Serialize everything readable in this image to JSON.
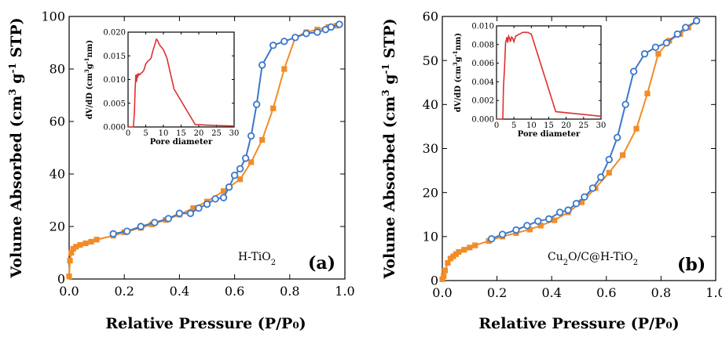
{
  "chart_data": [
    {
      "type": "line",
      "panel_label": "(a)",
      "sample_label": "H-TiO",
      "sample_label_sub": "2",
      "xlabel": "Relative Pressure (P/P₀)",
      "ylabel_parts": [
        "Volume Absorbed (cm",
        "3",
        " g",
        "-1",
        " STP)"
      ],
      "xlim": [
        0,
        1.0
      ],
      "ylim": [
        0,
        100
      ],
      "xticks": [
        "0.0",
        "0.2",
        "0.4",
        "0.6",
        "0.8",
        "1.0"
      ],
      "yticks": [
        "0",
        "20",
        "40",
        "60",
        "80",
        "100"
      ],
      "colors": {
        "adsorption": "#f28c28",
        "desorption": "#3a78c9"
      },
      "series": [
        {
          "marker": "square",
          "x": [
            0.0,
            0.003,
            0.008,
            0.015,
            0.025,
            0.04,
            0.06,
            0.08,
            0.1,
            0.16,
            0.2,
            0.26,
            0.3,
            0.35,
            0.4,
            0.45,
            0.5,
            0.56,
            0.62,
            0.66,
            0.7,
            0.74,
            0.78,
            0.82,
            0.86,
            0.9,
            0.94,
            0.97,
            0.98
          ],
          "y": [
            1,
            7,
            10,
            11.5,
            12.3,
            13,
            13.6,
            14.2,
            15,
            16.5,
            17.8,
            19.5,
            20.8,
            22.5,
            24.5,
            27,
            29.5,
            33.5,
            38,
            44.5,
            53,
            65,
            80,
            92,
            94,
            95,
            96,
            96.5,
            97
          ]
        },
        {
          "marker": "circle",
          "x": [
            0.98,
            0.95,
            0.93,
            0.9,
            0.86,
            0.82,
            0.78,
            0.74,
            0.7,
            0.68,
            0.66,
            0.64,
            0.62,
            0.6,
            0.58,
            0.56,
            0.53,
            0.5,
            0.47,
            0.44,
            0.4,
            0.36,
            0.31,
            0.26,
            0.21,
            0.16
          ],
          "y": [
            97,
            96,
            95,
            94,
            93.5,
            92,
            90.5,
            89,
            81.5,
            66.5,
            54.5,
            46,
            42,
            39.5,
            35,
            31,
            30.5,
            28.5,
            27,
            25,
            25,
            23,
            21.5,
            20,
            18.2,
            17.2
          ]
        }
      ],
      "inset": {
        "xlabel": "Pore diameter",
        "ylabel_parts": [
          "dV/dD (cm",
          "3",
          "g",
          "-1",
          "nm)"
        ],
        "xlim": [
          0,
          30
        ],
        "ylim": [
          0,
          0.02
        ],
        "xticks": [
          "0",
          "5",
          "10",
          "15",
          "20",
          "25",
          "30"
        ],
        "yticks": [
          "0.000",
          "0.005",
          "0.010",
          "0.015",
          "0.020"
        ],
        "color": "#e03030",
        "x": [
          0,
          1.5,
          1.8,
          2.0,
          2.2,
          2.4,
          2.6,
          2.8,
          3.0,
          3.3,
          3.6,
          4.0,
          4.5,
          5,
          5.5,
          6,
          6.5,
          7,
          7.5,
          8,
          8.3,
          8.6,
          9,
          10,
          11,
          13,
          19,
          25,
          30
        ],
        "y": [
          0,
          0,
          0.003,
          0.008,
          0.011,
          0.0095,
          0.0112,
          0.0107,
          0.0112,
          0.011,
          0.0113,
          0.0115,
          0.012,
          0.0133,
          0.0138,
          0.0141,
          0.0145,
          0.016,
          0.0172,
          0.0185,
          0.0183,
          0.0178,
          0.0172,
          0.0163,
          0.0145,
          0.008,
          0.0005,
          0.0003,
          0.0002
        ]
      }
    },
    {
      "type": "line",
      "panel_label": "(b)",
      "sample_label": "Cu",
      "sample_label_sub": "2",
      "sample_label_rest": "O/C@H-TiO",
      "sample_label_sub2": "2",
      "xlabel": "Relative Pressure (P/P₀)",
      "ylabel_parts": [
        "Volume Absorbed (cm",
        "3",
        " g",
        "-1",
        " STP)"
      ],
      "xlim": [
        0,
        1.0
      ],
      "ylim": [
        0,
        60
      ],
      "xticks": [
        "0.0",
        "0.2",
        "0.4",
        "0.6",
        "0.8",
        "1.0"
      ],
      "yticks": [
        "0",
        "10",
        "20",
        "30",
        "40",
        "50",
        "60"
      ],
      "colors": {
        "adsorption": "#f28c28",
        "desorption": "#3a78c9"
      },
      "series": [
        {
          "marker": "square",
          "x": [
            0.0,
            0.005,
            0.01,
            0.02,
            0.03,
            0.04,
            0.05,
            0.06,
            0.08,
            0.1,
            0.12,
            0.17,
            0.22,
            0.27,
            0.32,
            0.36,
            0.41,
            0.46,
            0.51,
            0.56,
            0.61,
            0.66,
            0.71,
            0.75,
            0.79,
            0.83,
            0.87,
            0.9,
            0.93
          ],
          "y": [
            0.3,
            1,
            2.3,
            4,
            5,
            5.5,
            6,
            6.5,
            7,
            7.5,
            8,
            9,
            10,
            10.8,
            11.6,
            12.5,
            13.7,
            15.5,
            17.8,
            21,
            24.5,
            28.5,
            34.5,
            42.5,
            51.5,
            54.5,
            56,
            57.5,
            59
          ]
        },
        {
          "marker": "circle",
          "x": [
            0.93,
            0.89,
            0.86,
            0.82,
            0.78,
            0.74,
            0.7,
            0.67,
            0.64,
            0.61,
            0.58,
            0.55,
            0.52,
            0.49,
            0.46,
            0.43,
            0.39,
            0.35,
            0.31,
            0.27,
            0.22,
            0.18
          ],
          "y": [
            59,
            57.5,
            56,
            54,
            53,
            51.5,
            47.5,
            40,
            32.5,
            27.5,
            23.5,
            21,
            19,
            17.5,
            16,
            15.5,
            14,
            13.5,
            12.5,
            11.5,
            10.5,
            9.5
          ]
        }
      ],
      "inset": {
        "xlabel": "Pore diameter",
        "ylabel_parts": [
          "dV/dD (cm",
          "3",
          "g",
          "-1",
          "nm)"
        ],
        "xlim": [
          0,
          30
        ],
        "ylim": [
          0,
          0.01
        ],
        "xticks": [
          "0",
          "5",
          "10",
          "15",
          "20",
          "25",
          "30"
        ],
        "yticks": [
          "0.000",
          "0.002",
          "0.004",
          "0.006",
          "0.008",
          "0.010"
        ],
        "color": "#e03030",
        "x": [
          0,
          1.8,
          2.0,
          2.3,
          2.6,
          3.0,
          3.2,
          3.5,
          3.8,
          4.0,
          4.3,
          4.6,
          5,
          5.5,
          6,
          6.5,
          7,
          7.5,
          8,
          9,
          10,
          17,
          25,
          30
        ],
        "y": [
          0,
          0,
          0.0035,
          0.0055,
          0.0082,
          0.0088,
          0.0082,
          0.0089,
          0.0086,
          0.0083,
          0.0088,
          0.0087,
          0.0083,
          0.0089,
          0.009,
          0.0091,
          0.0092,
          0.0093,
          0.0093,
          0.0093,
          0.0091,
          0.0008,
          0.0005,
          0.0003
        ]
      }
    }
  ]
}
